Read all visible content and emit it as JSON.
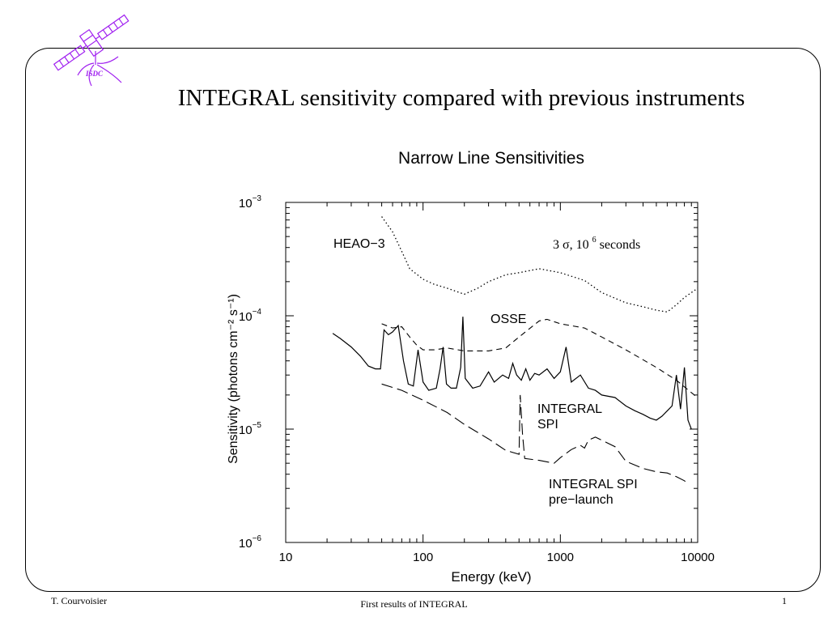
{
  "slide": {
    "title": "INTEGRAL sensitivity compared with previous instruments",
    "logo_text": "ISDC"
  },
  "footer": {
    "author": "T. Courvoisier",
    "center": "First results of INTEGRAL",
    "page": "1"
  },
  "colors": {
    "logo": "#a020f0",
    "ink": "#000000"
  },
  "chart_data": {
    "type": "line",
    "title": "Narrow Line Sensitivities",
    "xlabel": "Energy (keV)",
    "ylabel": "Sensitivity (photons cm⁻² s⁻¹)",
    "xscale": "log",
    "yscale": "log",
    "xlim": [
      10,
      10000
    ],
    "ylim": [
      1e-06,
      0.001
    ],
    "x_ticks": [
      {
        "value": 10,
        "label": "10"
      },
      {
        "value": 100,
        "label": "100"
      },
      {
        "value": 1000,
        "label": "1000"
      },
      {
        "value": 10000,
        "label": "10000"
      }
    ],
    "y_ticks": [
      {
        "value": 1e-06,
        "mant": "10",
        "exp": "−6"
      },
      {
        "value": 1e-05,
        "mant": "10",
        "exp": "−5"
      },
      {
        "value": 0.0001,
        "mant": "10",
        "exp": "−4"
      },
      {
        "value": 0.001,
        "mant": "10",
        "exp": "−3"
      }
    ],
    "grid": false,
    "annotation": {
      "sigma": "3 σ, 10",
      "sup": "6",
      "suffix": " seconds"
    },
    "series": [
      {
        "name": "HEAO−3",
        "style": "dotted",
        "label_lines": [
          "HEAO−3"
        ],
        "points": [
          [
            50,
            0.00075
          ],
          [
            60,
            0.00055
          ],
          [
            70,
            0.00037
          ],
          [
            80,
            0.00026
          ],
          [
            100,
            0.00021
          ],
          [
            120,
            0.00019
          ],
          [
            150,
            0.000175
          ],
          [
            200,
            0.000155
          ],
          [
            250,
            0.000175
          ],
          [
            300,
            0.0002
          ],
          [
            400,
            0.00023
          ],
          [
            500,
            0.00024
          ],
          [
            700,
            0.00026
          ],
          [
            1000,
            0.00024
          ],
          [
            1500,
            0.000205
          ],
          [
            2000,
            0.00016
          ],
          [
            3000,
            0.00013
          ],
          [
            4000,
            0.00012
          ],
          [
            5000,
            0.000112
          ],
          [
            6000,
            0.000108
          ],
          [
            7000,
            0.000125
          ],
          [
            8000,
            0.000145
          ],
          [
            9000,
            0.00016
          ],
          [
            10000,
            0.000175
          ]
        ]
      },
      {
        "name": "OSSE",
        "style": "dashed",
        "label_lines": [
          "OSSE"
        ],
        "points": [
          [
            50,
            8.5e-05
          ],
          [
            60,
            7.8e-05
          ],
          [
            70,
            8e-05
          ],
          [
            80,
            6.5e-05
          ],
          [
            90,
            5.5e-05
          ],
          [
            100,
            5e-05
          ],
          [
            120,
            5e-05
          ],
          [
            150,
            5.2e-05
          ],
          [
            200,
            4.9e-05
          ],
          [
            300,
            4.9e-05
          ],
          [
            400,
            5.2e-05
          ],
          [
            500,
            6.5e-05
          ],
          [
            700,
            9e-05
          ],
          [
            800,
            9.3e-05
          ],
          [
            1000,
            8.5e-05
          ],
          [
            1500,
            7.8e-05
          ],
          [
            2000,
            6.5e-05
          ],
          [
            3000,
            5e-05
          ],
          [
            5000,
            3.5e-05
          ],
          [
            7000,
            2.7e-05
          ],
          [
            9000,
            2.1e-05
          ],
          [
            10000,
            1.9e-05
          ]
        ]
      },
      {
        "name": "INTEGRAL SPI",
        "style": "solid",
        "label_lines": [
          "INTEGRAL",
          "SPI"
        ],
        "points": [
          [
            22,
            7e-05
          ],
          [
            25,
            6.3e-05
          ],
          [
            30,
            5.3e-05
          ],
          [
            35,
            4.4e-05
          ],
          [
            40,
            3.6e-05
          ],
          [
            45,
            3.4e-05
          ],
          [
            49,
            3.4e-05
          ],
          [
            52,
            7.5e-05
          ],
          [
            56,
            6.8e-05
          ],
          [
            60,
            7.2e-05
          ],
          [
            66,
            8.2e-05
          ],
          [
            72,
            4e-05
          ],
          [
            78,
            2.5e-05
          ],
          [
            85,
            2.4e-05
          ],
          [
            92,
            5e-05
          ],
          [
            100,
            2.6e-05
          ],
          [
            110,
            2.2e-05
          ],
          [
            125,
            2.3e-05
          ],
          [
            133,
            3.4e-05
          ],
          [
            140,
            5.3e-05
          ],
          [
            148,
            2.5e-05
          ],
          [
            160,
            2.3e-05
          ],
          [
            175,
            2.3e-05
          ],
          [
            188,
            3.5e-05
          ],
          [
            195,
            9.8e-05
          ],
          [
            203,
            2.8e-05
          ],
          [
            230,
            2.3e-05
          ],
          [
            260,
            2.4e-05
          ],
          [
            300,
            3.2e-05
          ],
          [
            330,
            2.6e-05
          ],
          [
            380,
            3e-05
          ],
          [
            420,
            2.8e-05
          ],
          [
            450,
            3.8e-05
          ],
          [
            480,
            3e-05
          ],
          [
            520,
            2.7e-05
          ],
          [
            560,
            3.4e-05
          ],
          [
            600,
            2.7e-05
          ],
          [
            650,
            3.1e-05
          ],
          [
            700,
            3e-05
          ],
          [
            800,
            3.4e-05
          ],
          [
            900,
            2.8e-05
          ],
          [
            1000,
            3.2e-05
          ],
          [
            1100,
            5.3e-05
          ],
          [
            1200,
            2.6e-05
          ],
          [
            1400,
            3e-05
          ],
          [
            1600,
            2.3e-05
          ],
          [
            1800,
            2.2e-05
          ],
          [
            2000,
            2e-05
          ],
          [
            2500,
            1.9e-05
          ],
          [
            3000,
            1.6e-05
          ],
          [
            3500,
            1.45e-05
          ],
          [
            4000,
            1.35e-05
          ],
          [
            4500,
            1.25e-05
          ],
          [
            5000,
            1.2e-05
          ],
          [
            5500,
            1.3e-05
          ],
          [
            6000,
            1.45e-05
          ],
          [
            6500,
            1.6e-05
          ],
          [
            7000,
            3e-05
          ],
          [
            7500,
            1.5e-05
          ],
          [
            8000,
            3.5e-05
          ],
          [
            8500,
            1.2e-05
          ],
          [
            9000,
            1e-05
          ]
        ]
      },
      {
        "name": "INTEGRAL SPI pre−launch",
        "style": "longdash",
        "label_lines": [
          "INTEGRAL SPI",
          "pre−launch"
        ],
        "points": [
          [
            50,
            2.5e-05
          ],
          [
            70,
            2.2e-05
          ],
          [
            100,
            1.8e-05
          ],
          [
            150,
            1.4e-05
          ],
          [
            200,
            1.1e-05
          ],
          [
            300,
            8.2e-06
          ],
          [
            400,
            6.5e-06
          ],
          [
            500,
            6e-06
          ],
          [
            510,
            2e-05
          ],
          [
            530,
            9e-06
          ],
          [
            550,
            5.5e-06
          ],
          [
            700,
            5.3e-06
          ],
          [
            900,
            5e-06
          ],
          [
            1000,
            5.6e-06
          ],
          [
            1200,
            6.6e-06
          ],
          [
            1400,
            7.2e-06
          ],
          [
            1500,
            6.8e-06
          ],
          [
            1600,
            8e-06
          ],
          [
            1800,
            8.5e-06
          ],
          [
            2000,
            8e-06
          ],
          [
            2500,
            7e-06
          ],
          [
            3000,
            5.2e-06
          ],
          [
            4000,
            4.5e-06
          ],
          [
            5000,
            4.2e-06
          ],
          [
            6000,
            4.1e-06
          ],
          [
            7000,
            3.8e-06
          ],
          [
            8000,
            3.5e-06
          ],
          [
            8500,
            3.3e-06
          ]
        ]
      }
    ]
  }
}
